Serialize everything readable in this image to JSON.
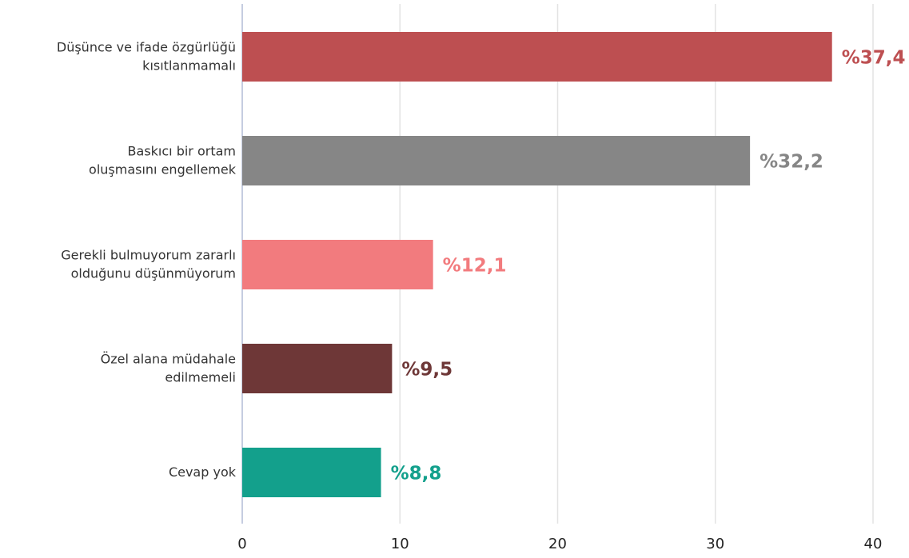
{
  "chart_data": {
    "type": "bar",
    "orientation": "horizontal",
    "categories": [
      [
        "Düşünce ve ifade özgürlüğü",
        "kısıtlanmamalı"
      ],
      [
        "Baskıcı bir ortam",
        "oluşmasını engellemek"
      ],
      [
        "Gerekli bulmuyorum zararlı",
        "olduğunu düşünmüyorum"
      ],
      [
        "Özel alana müdahale",
        "edilmemeli"
      ],
      [
        "Cevap yok"
      ]
    ],
    "values": [
      37.4,
      32.2,
      12.1,
      9.5,
      8.8
    ],
    "value_labels": [
      "%37,4",
      "%32,2",
      "%12,1",
      "%9,5",
      "%8,8"
    ],
    "colors": [
      "#bd4f51",
      "#868686",
      "#f27b7e",
      "#6e3737",
      "#13a08c"
    ],
    "xlim": [
      0,
      40
    ],
    "xticks": [
      0,
      10,
      20,
      30,
      40
    ],
    "grid": true
  }
}
